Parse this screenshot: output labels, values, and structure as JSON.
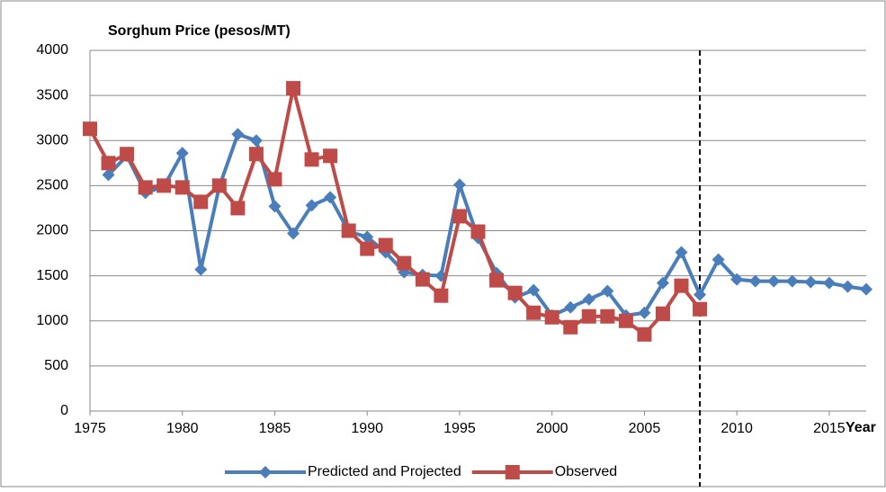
{
  "chart_data": {
    "type": "line",
    "title": "Sorghum Price (pesos/MT)",
    "x_label": "Year",
    "x": [
      1975,
      1976,
      1977,
      1978,
      1979,
      1980,
      1981,
      1982,
      1983,
      1984,
      1985,
      1986,
      1987,
      1988,
      1989,
      1990,
      1991,
      1992,
      1993,
      1994,
      1995,
      1996,
      1997,
      1998,
      1999,
      2000,
      2001,
      2002,
      2003,
      2004,
      2005,
      2006,
      2007,
      2008,
      2009,
      2010,
      2011,
      2012,
      2013,
      2014,
      2015,
      2016,
      2017
    ],
    "series": [
      {
        "name": "Predicted and Projected",
        "color": "#4a7ebb",
        "marker": "diamond",
        "values": [
          null,
          2620,
          2830,
          2420,
          2490,
          2860,
          1570,
          2490,
          3070,
          3000,
          2270,
          1970,
          2280,
          2370,
          1990,
          1930,
          1760,
          1540,
          1510,
          1500,
          2510,
          1920,
          1530,
          1260,
          1340,
          1060,
          1150,
          1240,
          1330,
          1060,
          1090,
          1420,
          1760,
          1290,
          1680,
          1460,
          1440,
          1440,
          1440,
          1430,
          1420,
          1380,
          1350
        ]
      },
      {
        "name": "Observed",
        "color": "#be4b48",
        "marker": "square",
        "values": [
          3130,
          2750,
          2850,
          2480,
          2500,
          2480,
          2320,
          2500,
          2250,
          2850,
          2570,
          3580,
          2790,
          2830,
          2000,
          1800,
          1840,
          1640,
          1460,
          1280,
          2160,
          1990,
          1450,
          1310,
          1090,
          1040,
          930,
          1050,
          1050,
          1000,
          850,
          1080,
          1390,
          1130,
          null,
          null,
          null,
          null,
          null,
          null,
          null,
          null,
          null
        ]
      }
    ],
    "xlim": [
      1975,
      2017
    ],
    "xticks": [
      1975,
      1980,
      1985,
      1990,
      1995,
      2000,
      2005,
      2010,
      2015
    ],
    "ylim": [
      0,
      4000
    ],
    "yticks": [
      0,
      500,
      1000,
      1500,
      2000,
      2500,
      3000,
      3500,
      4000
    ],
    "grid": true,
    "vline": 2008,
    "legend": "bottom"
  }
}
